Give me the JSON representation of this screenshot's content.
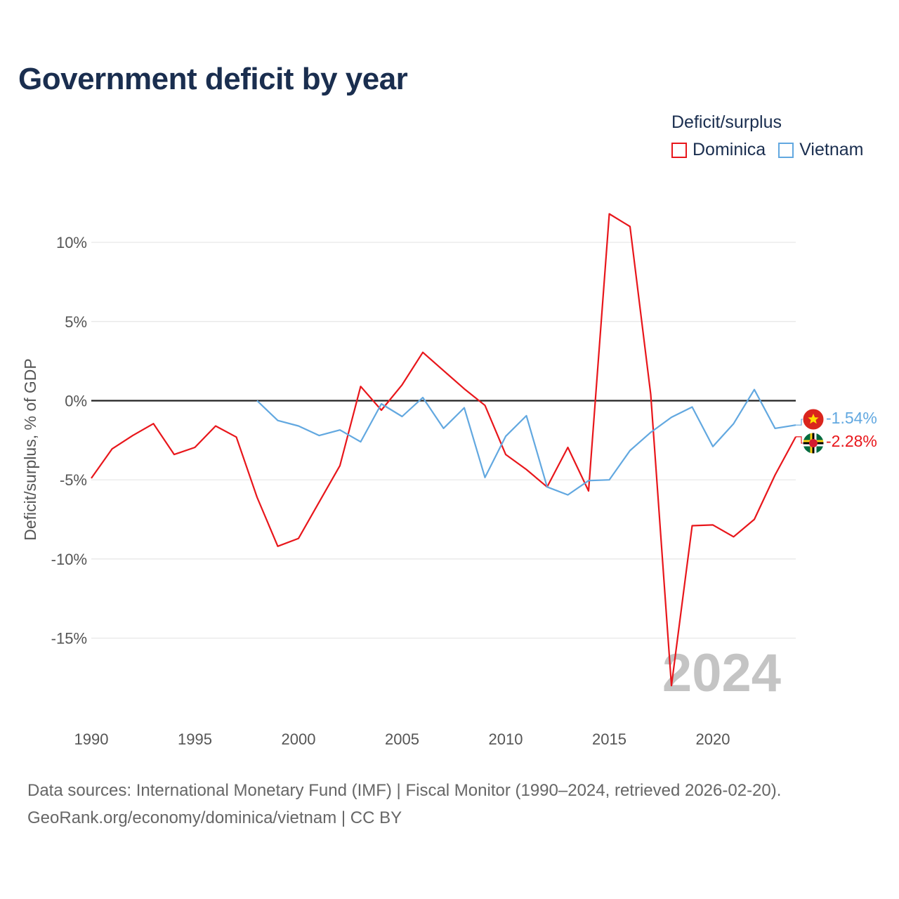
{
  "title": "Government deficit by year",
  "legend": {
    "title": "Deficit/surplus",
    "items": [
      {
        "label": "Dominica",
        "color": "#e8161b"
      },
      {
        "label": "Vietnam",
        "color": "#62a8e0"
      }
    ]
  },
  "chart_data": {
    "type": "line",
    "title": "Government deficit by year",
    "xlabel": "",
    "ylabel": "Deficit/surplus, % of GDP",
    "xlim": [
      1990,
      2024
    ],
    "ylim": [
      -19.5,
      12
    ],
    "x_ticks": [
      1990,
      1995,
      2000,
      2005,
      2010,
      2015,
      2020
    ],
    "x_tick_labels": [
      "1990",
      "1995",
      "2000",
      "2005",
      "2010",
      "2015",
      "2020"
    ],
    "y_ticks": [
      10,
      5,
      0,
      -5,
      -10,
      -15
    ],
    "y_tick_labels": [
      "10%",
      "5%",
      "0%",
      "-5%",
      "-10%",
      "-15%"
    ],
    "year_watermark": "2024",
    "series": [
      {
        "name": "Dominica",
        "color": "#e8161b",
        "end_label": "-2.28%",
        "points": [
          [
            1990,
            -4.9
          ],
          [
            1991,
            -3.05
          ],
          [
            1992,
            -2.2
          ],
          [
            1993,
            -1.45
          ],
          [
            1994,
            -3.4
          ],
          [
            1995,
            -2.95
          ],
          [
            1996,
            -1.6
          ],
          [
            1997,
            -2.3
          ],
          [
            1998,
            -6.1
          ],
          [
            1999,
            -9.2
          ],
          [
            2000,
            -8.7
          ],
          [
            2001,
            -6.4
          ],
          [
            2002,
            -4.1
          ],
          [
            2003,
            0.9
          ],
          [
            2004,
            -0.6
          ],
          [
            2005,
            1.0
          ],
          [
            2006,
            3.05
          ],
          [
            2007,
            1.9
          ],
          [
            2008,
            0.75
          ],
          [
            2009,
            -0.3
          ],
          [
            2010,
            -3.4
          ],
          [
            2011,
            -4.35
          ],
          [
            2012,
            -5.45
          ],
          [
            2013,
            -2.95
          ],
          [
            2014,
            -5.7
          ],
          [
            2015,
            11.8
          ],
          [
            2016,
            11.0
          ],
          [
            2017,
            0.4
          ],
          [
            2018,
            -18.0
          ],
          [
            2019,
            -7.9
          ],
          [
            2020,
            -7.85
          ],
          [
            2021,
            -8.6
          ],
          [
            2022,
            -7.5
          ],
          [
            2023,
            -4.7
          ],
          [
            2024,
            -2.28
          ]
        ]
      },
      {
        "name": "Vietnam",
        "color": "#62a8e0",
        "end_label": "-1.54%",
        "points": [
          [
            1998,
            0.0
          ],
          [
            1999,
            -1.25
          ],
          [
            2000,
            -1.6
          ],
          [
            2001,
            -2.2
          ],
          [
            2002,
            -1.85
          ],
          [
            2003,
            -2.6
          ],
          [
            2004,
            -0.2
          ],
          [
            2005,
            -1.0
          ],
          [
            2006,
            0.2
          ],
          [
            2007,
            -1.75
          ],
          [
            2008,
            -0.45
          ],
          [
            2009,
            -4.85
          ],
          [
            2010,
            -2.25
          ],
          [
            2011,
            -0.95
          ],
          [
            2012,
            -5.45
          ],
          [
            2013,
            -5.95
          ],
          [
            2014,
            -5.05
          ],
          [
            2015,
            -5.0
          ],
          [
            2016,
            -3.15
          ],
          [
            2017,
            -2.0
          ],
          [
            2018,
            -1.05
          ],
          [
            2019,
            -0.4
          ],
          [
            2020,
            -2.9
          ],
          [
            2021,
            -1.45
          ],
          [
            2022,
            0.7
          ],
          [
            2023,
            -1.75
          ],
          [
            2024,
            -1.54
          ]
        ]
      }
    ]
  },
  "footer": {
    "line1": "Data sources: International Monetary Fund (IMF) | Fiscal Monitor (1990–2024, retrieved 2026-02-20).",
    "line2": "GeoRank.org/economy/dominica/vietnam | CC BY"
  }
}
